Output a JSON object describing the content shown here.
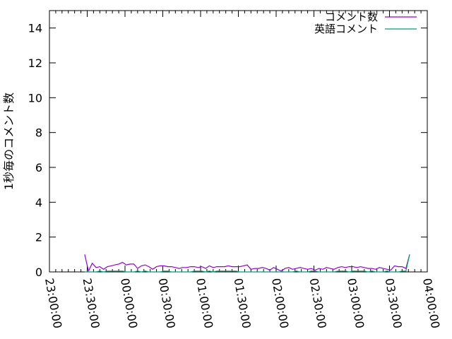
{
  "chart_data": {
    "type": "line",
    "title": "",
    "xlabel": "",
    "ylabel": "1秒毎のコメント数",
    "xlim": [
      "23:00:00",
      "04:00:00"
    ],
    "ylim": [
      0,
      15
    ],
    "x_ticks": [
      "23:00:00",
      "23:30:00",
      "00:00:00",
      "00:30:00",
      "01:00:00",
      "01:30:00",
      "02:00:00",
      "02:30:00",
      "03:00:00",
      "03:30:00",
      "04:00:00"
    ],
    "y_ticks": [
      "0",
      "2",
      "4",
      "6",
      "8",
      "10",
      "12",
      "14"
    ],
    "grid": false,
    "legend_position": "top-right",
    "x": [
      "23:28",
      "23:31",
      "23:34",
      "23:37",
      "23:40",
      "23:43",
      "23:46",
      "23:49",
      "23:52",
      "23:55",
      "23:58",
      "00:01",
      "00:04",
      "00:07",
      "00:10",
      "00:13",
      "00:16",
      "00:19",
      "00:22",
      "00:25",
      "00:28",
      "00:31",
      "00:34",
      "00:37",
      "00:40",
      "00:43",
      "00:46",
      "00:49",
      "00:52",
      "00:55",
      "00:58",
      "01:01",
      "01:04",
      "01:07",
      "01:10",
      "01:13",
      "01:16",
      "01:19",
      "01:22",
      "01:25",
      "01:28",
      "01:31",
      "01:34",
      "01:37",
      "01:40",
      "01:43",
      "01:46",
      "01:49",
      "01:52",
      "01:55",
      "01:58",
      "02:01",
      "02:04",
      "02:07",
      "02:10",
      "02:13",
      "02:16",
      "02:19",
      "02:22",
      "02:25",
      "02:28",
      "02:31",
      "02:34",
      "02:37",
      "02:40",
      "02:43",
      "02:46",
      "02:49",
      "02:52",
      "02:55",
      "02:58",
      "03:01",
      "03:04",
      "03:07",
      "03:10",
      "03:13",
      "03:16",
      "03:19",
      "03:22",
      "03:25",
      "03:28",
      "03:31",
      "03:34",
      "03:37",
      "03:40",
      "03:43",
      "03:46"
    ],
    "series": [
      {
        "name": "コメント数",
        "color": "#9400d3",
        "values": [
          1.0,
          0.05,
          0.5,
          0.25,
          0.3,
          0.15,
          0.3,
          0.35,
          0.4,
          0.45,
          0.55,
          0.4,
          0.45,
          0.45,
          0.2,
          0.35,
          0.4,
          0.3,
          0.15,
          0.3,
          0.35,
          0.35,
          0.3,
          0.3,
          0.25,
          0.2,
          0.25,
          0.25,
          0.3,
          0.3,
          0.25,
          0.3,
          0.2,
          0.35,
          0.25,
          0.3,
          0.3,
          0.3,
          0.35,
          0.3,
          0.3,
          0.3,
          0.35,
          0.4,
          0.15,
          0.2,
          0.2,
          0.25,
          0.2,
          0.1,
          0.25,
          0.15,
          0.05,
          0.2,
          0.25,
          0.15,
          0.2,
          0.25,
          0.2,
          0.15,
          0.2,
          0.1,
          0.2,
          0.15,
          0.25,
          0.2,
          0.15,
          0.25,
          0.3,
          0.25,
          0.3,
          0.3,
          0.25,
          0.3,
          0.25,
          0.2,
          0.2,
          0.15,
          0.25,
          0.2,
          0.15,
          0.1,
          0.35,
          0.3,
          0.3,
          0.2,
          1.0
        ]
      },
      {
        "name": "英語コメント",
        "color": "#009e73",
        "values": [
          0,
          0,
          0,
          0,
          0.05,
          0,
          0.05,
          0.05,
          0.05,
          0.05,
          0.05,
          0,
          0,
          0,
          0.05,
          0,
          0.05,
          0,
          0,
          0,
          0,
          0.05,
          0.05,
          0,
          0,
          0,
          0,
          0,
          0,
          0.05,
          0.05,
          0.05,
          0,
          0.05,
          0,
          0.05,
          0.05,
          0.05,
          0.05,
          0.05,
          0.05,
          0,
          0,
          0,
          0,
          0,
          0,
          0,
          0,
          0,
          0,
          0,
          0,
          0,
          0,
          0,
          0.05,
          0,
          0,
          0,
          0.05,
          0.05,
          0,
          0,
          0,
          0,
          0,
          0.05,
          0.05,
          0.05,
          0,
          0.05,
          0.05,
          0.05,
          0.05,
          0,
          0.05,
          0,
          0,
          0,
          0.05,
          0,
          0,
          0,
          0.05,
          0.05,
          1.0
        ]
      }
    ]
  }
}
